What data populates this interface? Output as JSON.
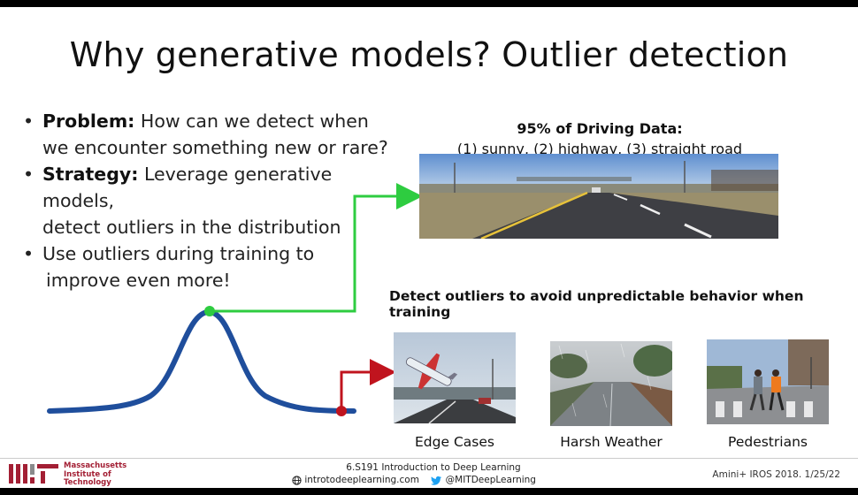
{
  "slide": {
    "title": "Why generative models? Outlier detection",
    "bullets": [
      {
        "bold": "Problem:",
        "line1": " How can we detect when",
        "line2": "we encounter something new or rare?"
      },
      {
        "bold": "Strategy:",
        "line1": "  Leverage generative models,",
        "line2": "detect outliers in the distribution"
      },
      {
        "bold": "",
        "line1": "Use outliers during training to",
        "line2": "improve even more!"
      }
    ],
    "driving": {
      "title": "95% of Driving Data:",
      "subtitle": "(1) sunny, (2) highway, (3) straight road"
    },
    "detect_text": "Detect outliers to avoid unpredictable behavior when training",
    "outlier_images": [
      {
        "caption": "Edge Cases"
      },
      {
        "caption": "Harsh Weather"
      },
      {
        "caption": "Pedestrians"
      }
    ],
    "colors": {
      "curve": "#1f4e9c",
      "green_arrow": "#2ecc40",
      "red_arrow": "#c0141e"
    }
  },
  "footer": {
    "mit_name": [
      "Massachusetts",
      "Institute of",
      "Technology"
    ],
    "course": "6.S191 Introduction to Deep Learning",
    "website": "introtodeeplearning.com",
    "twitter": "@MITDeepLearning",
    "citation": "Amini+ IROS 2018. 1/25/22",
    "icons": [
      "globe-icon",
      "twitter-bird-icon"
    ]
  }
}
